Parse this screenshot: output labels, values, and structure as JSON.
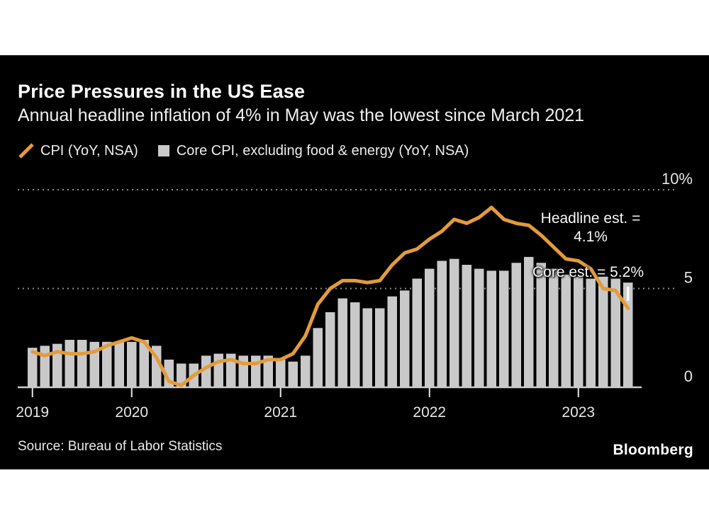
{
  "header": {
    "title": "Price Pressures in the US Ease",
    "subtitle": "Annual headline inflation of 4% in May was the lowest since March 2021"
  },
  "legend": {
    "line_label": "CPI (YoY, NSA)",
    "bar_label": "Core CPI, excluding food & energy (YoY, NSA)"
  },
  "annotations": {
    "headline_est_line1": "Headline est. =",
    "headline_est_line2": "4.1%",
    "core_est": "Core est. = 5.2%"
  },
  "footer": {
    "source": "Source: Bureau of Labor Statistics",
    "brand": "Bloomberg"
  },
  "colors": {
    "page": "#ffffff",
    "card": "#000000",
    "line": "#e49b3a",
    "bar": "#c9c9c9",
    "grid": "#8c8c8c",
    "axis": "#cccccc",
    "tick_label": "#e6e6e6",
    "estimate_marker": "#ffffff"
  },
  "chart_data": {
    "type": "combo_bar_line",
    "title": "Price Pressures in the US Ease",
    "x_start": "2019-05",
    "x_end": "2023-05",
    "ylim": [
      0,
      10
    ],
    "grid": "dotted horizontal at 5 and 10",
    "legend_position": "top-left",
    "y_axis": {
      "side": "right",
      "ticks": [
        {
          "label": "10%",
          "value": 10
        },
        {
          "label": "5",
          "value": 5
        },
        {
          "label": "0",
          "value": 0
        }
      ],
      "gridline_values": [
        5,
        10
      ]
    },
    "x_axis": {
      "year_ticks": [
        {
          "label": "2019",
          "month_index": 0
        },
        {
          "label": "2020",
          "month_index": 8
        },
        {
          "label": "2021",
          "month_index": 20
        },
        {
          "label": "2022",
          "month_index": 32
        },
        {
          "label": "2023",
          "month_index": 44
        }
      ]
    },
    "series": [
      {
        "name": "CPI (YoY, NSA)",
        "type": "line",
        "color": "#e49b3a",
        "values": [
          1.8,
          1.6,
          1.8,
          1.7,
          1.7,
          1.8,
          2.1,
          2.3,
          2.5,
          2.3,
          1.5,
          0.3,
          0.1,
          0.6,
          1.0,
          1.3,
          1.4,
          1.2,
          1.2,
          1.4,
          1.4,
          1.7,
          2.6,
          4.2,
          5.0,
          5.4,
          5.4,
          5.3,
          5.4,
          6.2,
          6.8,
          7.0,
          7.5,
          7.9,
          8.5,
          8.3,
          8.6,
          9.1,
          8.5,
          8.3,
          8.2,
          7.7,
          7.1,
          6.5,
          6.4,
          6.0,
          5.0,
          4.9,
          4.0
        ]
      },
      {
        "name": "Core CPI, excluding food & energy (YoY, NSA)",
        "type": "bar",
        "color": "#c9c9c9",
        "values": [
          2.0,
          2.1,
          2.2,
          2.4,
          2.4,
          2.3,
          2.3,
          2.3,
          2.3,
          2.4,
          2.1,
          1.4,
          1.2,
          1.2,
          1.6,
          1.7,
          1.7,
          1.6,
          1.6,
          1.6,
          1.4,
          1.3,
          1.6,
          3.0,
          3.8,
          4.5,
          4.3,
          4.0,
          4.0,
          4.6,
          4.9,
          5.5,
          6.0,
          6.4,
          6.5,
          6.2,
          6.0,
          5.9,
          5.9,
          6.3,
          6.6,
          6.3,
          6.0,
          5.7,
          5.6,
          5.5,
          5.6,
          5.5,
          5.3
        ]
      }
    ],
    "estimates": {
      "headline": 4.1,
      "core": 5.2
    },
    "estimate_marker": {
      "series": "core",
      "value": 5.2,
      "month_index": 48
    }
  }
}
